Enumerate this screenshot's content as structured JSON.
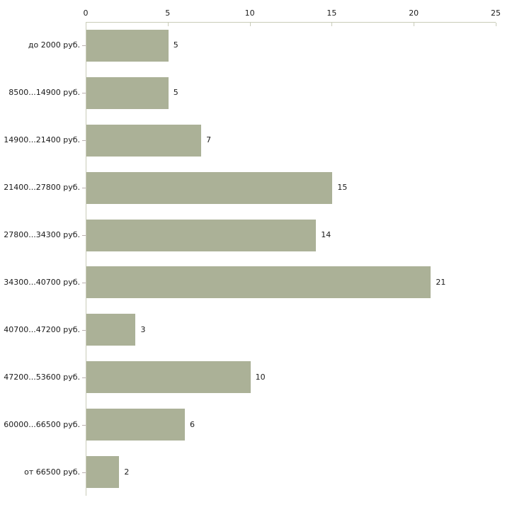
{
  "chart_data": {
    "type": "bar",
    "orientation": "horizontal",
    "title": "",
    "xlabel": "",
    "ylabel": "",
    "categories": [
      "до 2000 руб.",
      "8500...14900 руб.",
      "14900...21400 руб.",
      "21400...27800 руб.",
      "27800...34300 руб.",
      "34300...40700 руб.",
      "40700...47200 руб.",
      "47200...53600 руб.",
      "60000...66500 руб.",
      "от 66500 руб."
    ],
    "values": [
      5,
      5,
      7,
      15,
      14,
      21,
      3,
      10,
      6,
      2
    ],
    "value_labels": [
      "5",
      "5",
      "7",
      "15",
      "14",
      "21",
      "3",
      "10",
      "6",
      "2"
    ],
    "xlim": [
      0,
      25
    ],
    "x_ticks": [
      0,
      5,
      10,
      15,
      20,
      25
    ],
    "axis_position": "top",
    "grid": false,
    "legend": null,
    "colors": {
      "bar_fill": "#abb197",
      "axis_line": "#c9ccb9",
      "y_tick": "#b9aeae",
      "text": "#1a1a1a",
      "background": "#ffffff"
    }
  }
}
